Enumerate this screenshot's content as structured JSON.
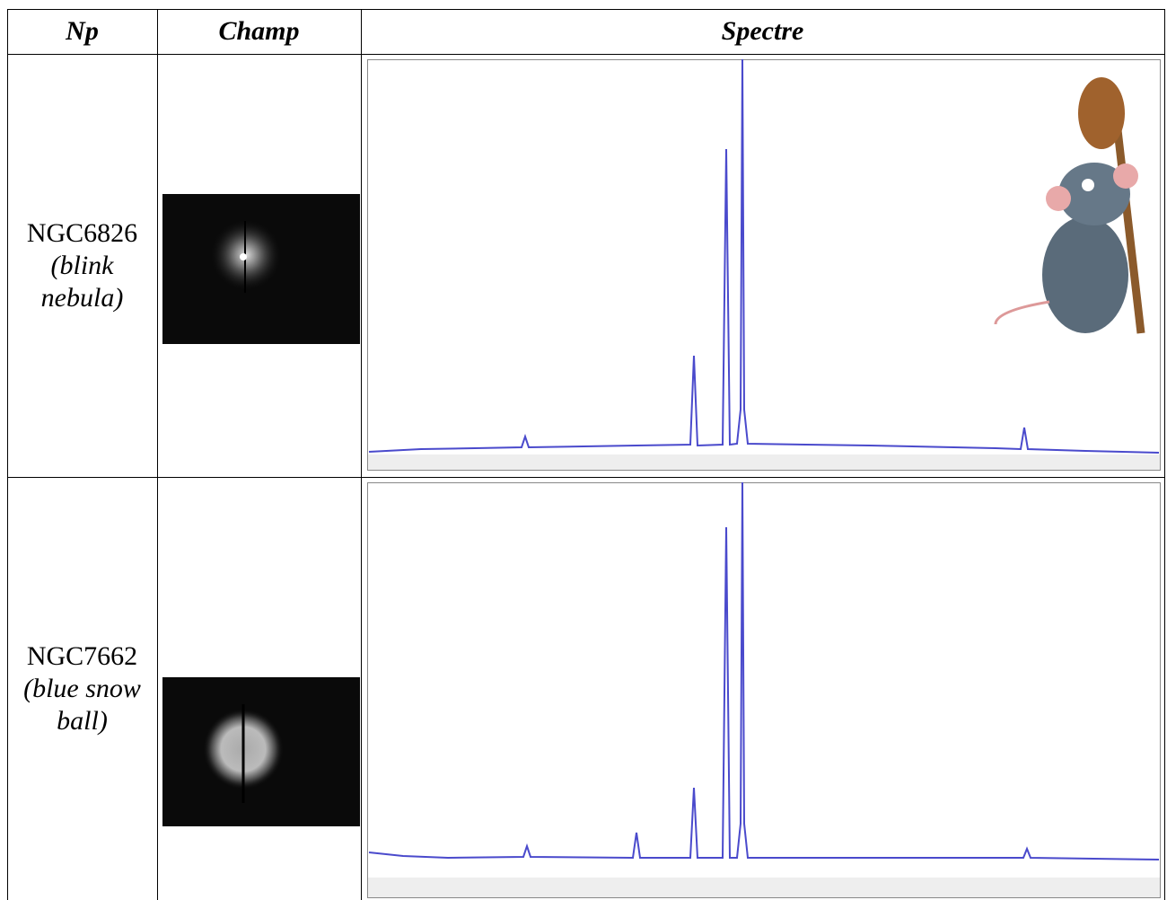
{
  "table": {
    "header": [
      "Np",
      "Champ",
      "Spectre"
    ],
    "rows": [
      {
        "name": "NGC6826",
        "note": "(blink nebula)"
      },
      {
        "name": "NGC7662",
        "note": "(blue snow ball)"
      }
    ]
  }
}
